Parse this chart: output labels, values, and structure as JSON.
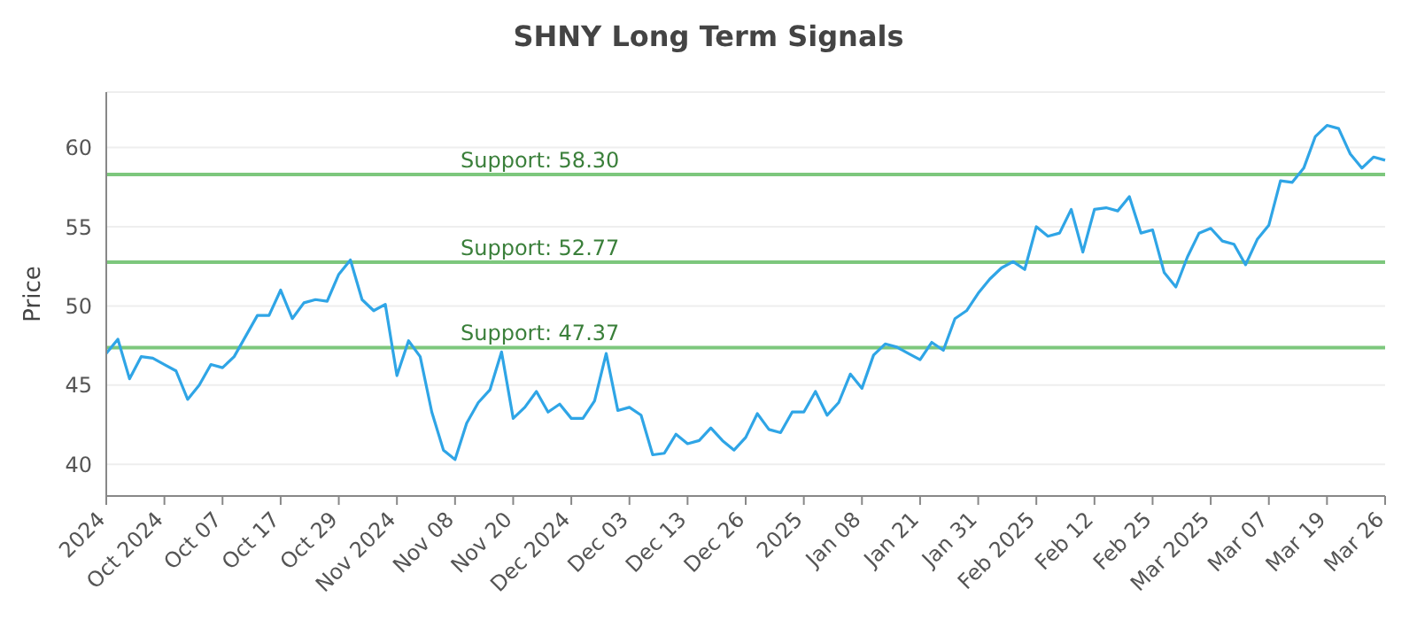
{
  "chart_data": {
    "type": "line",
    "title": "SHNY Long Term Signals",
    "ylabel": "Price",
    "categories": [
      "2024",
      null,
      null,
      null,
      null,
      "Oct 2024",
      null,
      null,
      null,
      null,
      "Oct 07",
      null,
      null,
      null,
      null,
      "Oct 17",
      null,
      null,
      null,
      null,
      "Oct 29",
      null,
      null,
      null,
      null,
      "Nov 2024",
      null,
      null,
      null,
      null,
      "Nov 08",
      null,
      null,
      null,
      null,
      "Nov 20",
      null,
      null,
      null,
      null,
      "Dec 2024",
      null,
      null,
      null,
      null,
      "Dec 03",
      null,
      null,
      null,
      null,
      "Dec 13",
      null,
      null,
      null,
      null,
      "Dec 26",
      null,
      null,
      null,
      null,
      "2025",
      null,
      null,
      null,
      null,
      "Jan 08",
      null,
      null,
      null,
      null,
      "Jan 21",
      null,
      null,
      null,
      null,
      "Jan 31",
      null,
      null,
      null,
      null,
      "Feb 2025",
      null,
      null,
      null,
      null,
      "Feb 12",
      null,
      null,
      null,
      null,
      "Feb 25",
      null,
      null,
      null,
      null,
      "Mar 2025",
      null,
      null,
      null,
      null,
      "Mar 07",
      null,
      null,
      null,
      null,
      "Mar 19",
      null,
      null,
      null,
      null,
      "Mar 26"
    ],
    "series": [
      {
        "color": "#2fa5e6",
        "values": [
          47.0,
          47.9,
          45.4,
          46.8,
          46.7,
          46.3,
          45.9,
          44.1,
          45.0,
          46.3,
          46.1,
          46.8,
          48.1,
          49.4,
          49.4,
          51.0,
          49.2,
          50.2,
          50.4,
          50.3,
          52.0,
          52.9,
          50.4,
          49.7,
          50.1,
          45.6,
          47.8,
          46.8,
          43.3,
          40.9,
          40.3,
          42.6,
          43.9,
          44.7,
          47.1,
          42.9,
          43.6,
          44.6,
          43.3,
          43.8,
          42.9,
          42.9,
          44.0,
          47.0,
          43.4,
          43.6,
          43.1,
          40.6,
          40.7,
          41.9,
          41.3,
          41.5,
          42.3,
          41.5,
          40.9,
          41.7,
          43.2,
          42.2,
          42.0,
          43.3,
          43.3,
          44.6,
          43.1,
          43.9,
          45.7,
          44.8,
          46.9,
          47.6,
          47.4,
          47.0,
          46.6,
          47.7,
          47.2,
          49.2,
          49.7,
          50.8,
          51.7,
          52.4,
          52.8,
          52.3,
          55.0,
          54.4,
          54.6,
          56.1,
          53.4,
          56.1,
          56.2,
          56.0,
          56.9,
          54.6,
          54.8,
          52.1,
          51.2,
          53.1,
          54.6,
          54.9,
          54.1,
          53.9,
          52.6,
          54.2,
          55.1,
          57.9,
          57.8,
          58.7,
          60.7,
          61.4,
          61.2,
          59.6,
          58.7,
          59.4,
          59.2
        ]
      }
    ],
    "ylim": [
      38,
      63.5
    ],
    "yticks": [
      40,
      45,
      50,
      55,
      60
    ],
    "grid": "y",
    "marker": "none",
    "line_style": "solid",
    "legend": false,
    "ref_lines": [
      {
        "axis": "y",
        "value": 58.3,
        "label": "Support: 58.30",
        "color": "#7dc77d"
      },
      {
        "axis": "y",
        "value": 52.77,
        "label": "Support: 52.77",
        "color": "#7dc77d"
      },
      {
        "axis": "y",
        "value": 47.37,
        "label": "Support: 47.37",
        "color": "#7dc77d"
      }
    ]
  }
}
